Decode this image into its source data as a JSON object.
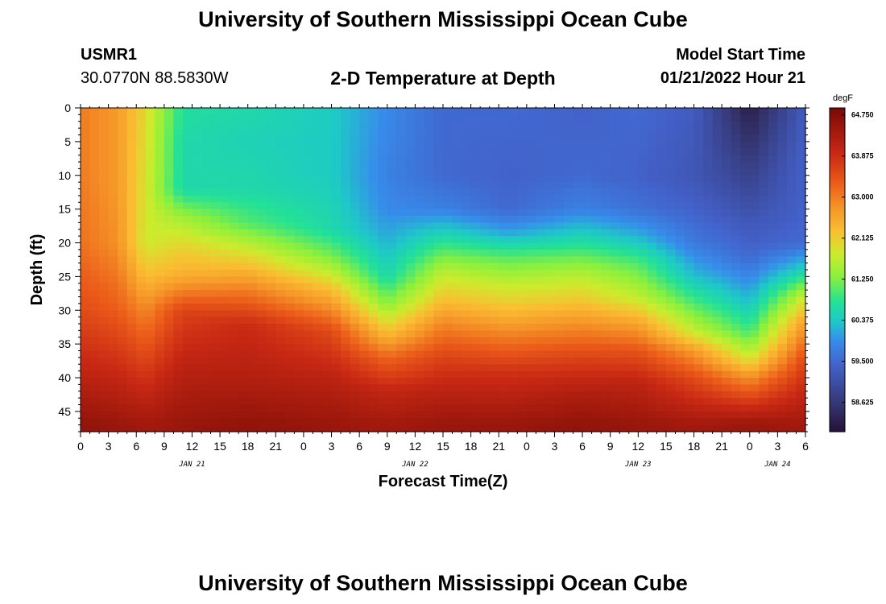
{
  "header": {
    "title": "University of Southern Mississippi Ocean Cube",
    "station_id": "USMR1",
    "station_coords": "30.0770N  88.5830W",
    "plot_title": "2-D Temperature at Depth",
    "start_label": "Model Start Time",
    "start_value": "01/21/2022 Hour 21"
  },
  "footer": {
    "title": "University of Southern Mississippi Ocean Cube"
  },
  "chart_data": {
    "type": "heatmap",
    "title": "2-D Temperature at Depth",
    "xlabel": "Forecast Time(Z)",
    "ylabel": "Depth (ft)",
    "x_tick_labels": [
      "0",
      "3",
      "6",
      "9",
      "12",
      "15",
      "18",
      "21",
      "0",
      "3",
      "6",
      "9",
      "12",
      "15",
      "18",
      "21",
      "0",
      "3",
      "6",
      "9",
      "12",
      "15",
      "18",
      "21",
      "0",
      "3",
      "6"
    ],
    "x_date_labels": [
      {
        "text": "JAN 21",
        "tick_index": 4
      },
      {
        "text": "JAN 22",
        "tick_index": 12
      },
      {
        "text": "JAN 23",
        "tick_index": 20
      },
      {
        "text": "JAN 24",
        "tick_index": 25
      }
    ],
    "x_range_hours": [
      0,
      78
    ],
    "y_ticks": [
      0,
      5,
      10,
      15,
      20,
      25,
      30,
      35,
      40,
      45
    ],
    "y_range_ft": [
      0,
      48
    ],
    "y_inverted": true,
    "colorbar": {
      "unit": "degF",
      "tick_labels": [
        "64.750",
        "63.875",
        "63.000",
        "62.125",
        "61.250",
        "60.375",
        "59.500",
        "58.625"
      ],
      "range": [
        58.0,
        64.9
      ],
      "colormap": "turbo-like (dark navy → blue → cyan → green → yellow → orange → red → dark red)"
    },
    "keyframes": [
      {
        "hour": 0,
        "temps": {
          "0": 63.0,
          "10": 63.0,
          "20": 63.1,
          "30": 63.5,
          "40": 64.1,
          "47": 64.6
        }
      },
      {
        "hour": 4,
        "temps": {
          "0": 62.7,
          "10": 62.7,
          "20": 62.8,
          "30": 63.3,
          "40": 64.0,
          "47": 64.5
        }
      },
      {
        "hour": 7,
        "temps": {
          "0": 62.0,
          "10": 61.9,
          "20": 61.8,
          "25": 62.3,
          "30": 62.9,
          "40": 63.8,
          "47": 64.4
        }
      },
      {
        "hour": 11,
        "temps": {
          "0": 60.7,
          "5": 60.6,
          "12": 60.6,
          "16": 61.4,
          "20": 62.0,
          "25": 62.5,
          "30": 63.6,
          "40": 64.2,
          "47": 64.5
        }
      },
      {
        "hour": 18,
        "temps": {
          "0": 60.6,
          "5": 60.5,
          "12": 60.6,
          "17": 61.0,
          "21": 61.8,
          "26": 62.8,
          "32": 63.9,
          "40": 64.2,
          "47": 64.6
        }
      },
      {
        "hour": 27,
        "temps": {
          "0": 60.4,
          "10": 60.4,
          "18": 60.6,
          "22": 61.2,
          "27": 62.3,
          "33": 63.5,
          "40": 64.1,
          "47": 64.5
        }
      },
      {
        "hour": 33,
        "temps": {
          "0": 59.9,
          "10": 59.8,
          "15": 59.9,
          "20": 60.2,
          "25": 60.6,
          "29": 61.3,
          "33": 62.2,
          "37": 63.2,
          "42": 64.0,
          "47": 64.4
        }
      },
      {
        "hour": 39,
        "temps": {
          "0": 59.5,
          "10": 59.5,
          "15": 59.8,
          "20": 60.8,
          "24": 61.6,
          "28": 62.2,
          "32": 62.9,
          "37": 63.6,
          "42": 64.1,
          "47": 64.5
        }
      },
      {
        "hour": 46,
        "temps": {
          "0": 59.5,
          "10": 59.4,
          "15": 59.5,
          "18": 60.0,
          "22": 61.0,
          "26": 61.7,
          "30": 62.3,
          "34": 63.0,
          "39": 63.8,
          "47": 64.5
        }
      },
      {
        "hour": 54,
        "temps": {
          "0": 59.4,
          "10": 59.5,
          "15": 59.8,
          "20": 60.7,
          "24": 61.5,
          "28": 62.1,
          "32": 62.8,
          "37": 63.6,
          "42": 64.2,
          "47": 64.6
        }
      },
      {
        "hour": 60,
        "temps": {
          "0": 59.5,
          "10": 59.4,
          "15": 59.6,
          "19": 60.2,
          "23": 61.0,
          "28": 61.7,
          "32": 62.6,
          "36": 63.4,
          "41": 64.1,
          "47": 64.5
        }
      },
      {
        "hour": 66,
        "temps": {
          "0": 59.3,
          "10": 59.2,
          "15": 59.4,
          "20": 59.7,
          "25": 60.3,
          "29": 61.0,
          "33": 61.7,
          "36": 62.7,
          "40": 63.5,
          "47": 64.4
        }
      },
      {
        "hour": 72,
        "temps": {
          "0": 58.2,
          "8": 58.7,
          "15": 59.1,
          "22": 59.5,
          "28": 60.2,
          "33": 60.9,
          "37": 61.8,
          "40": 62.8,
          "44": 63.8,
          "47": 64.5
        }
      },
      {
        "hour": 78,
        "temps": {
          "0": 59.3,
          "8": 59.4,
          "15": 59.4,
          "20": 59.5,
          "25": 60.8,
          "28": 61.8,
          "32": 62.7,
          "37": 63.5,
          "42": 64.0,
          "47": 64.4
        }
      }
    ]
  }
}
